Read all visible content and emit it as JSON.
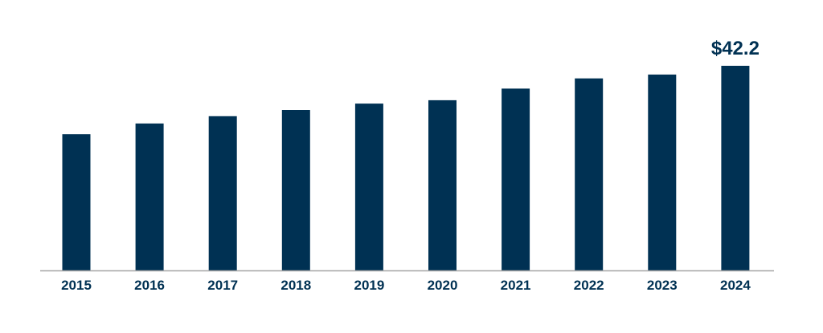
{
  "chart_data": {
    "type": "bar",
    "categories": [
      "2015",
      "2016",
      "2017",
      "2018",
      "2019",
      "2020",
      "2021",
      "2022",
      "2023",
      "2024"
    ],
    "values": [
      28.1,
      30.3,
      31.8,
      33.1,
      34.4,
      35.1,
      37.5,
      39.6,
      40.4,
      42.2
    ],
    "data_labels": [
      {
        "category": "2024",
        "text": "$42.2"
      }
    ],
    "title": "",
    "xlabel": "",
    "ylabel": "",
    "ylim": [
      0,
      42.2
    ],
    "grid": false,
    "legend": "none"
  },
  "colors": {
    "bar": "#003153",
    "axis": "#a6a6a6",
    "text": "#003153"
  }
}
